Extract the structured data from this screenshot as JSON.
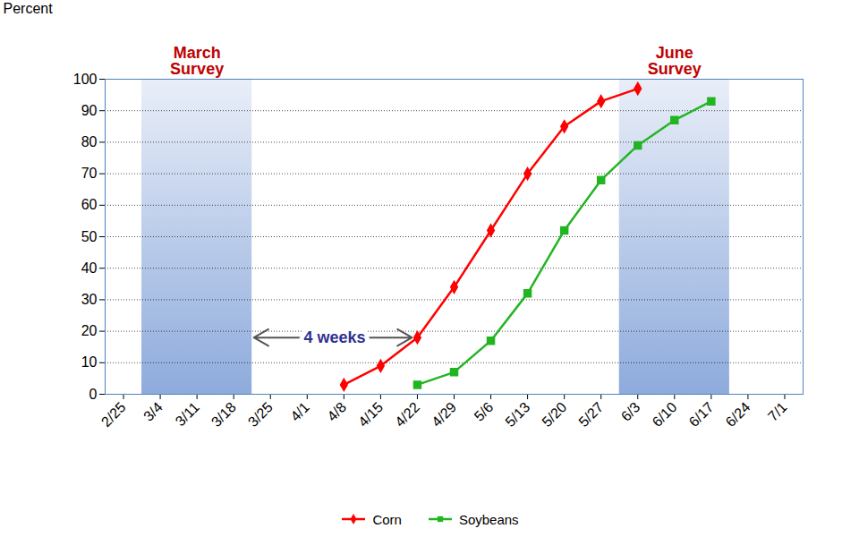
{
  "chart_data": {
    "type": "line",
    "x": [
      "2/25",
      "3/4",
      "3/11",
      "3/18",
      "3/25",
      "4/1",
      "4/8",
      "4/15",
      "4/22",
      "4/29",
      "5/6",
      "5/13",
      "5/20",
      "5/27",
      "6/3",
      "6/10",
      "6/17",
      "6/24",
      "7/1"
    ],
    "series": [
      {
        "name": "Corn",
        "color": "#ff0000",
        "marker": "diamond",
        "values": [
          null,
          null,
          null,
          null,
          null,
          null,
          3,
          9,
          18,
          34,
          52,
          70,
          85,
          93,
          97,
          null,
          null,
          null,
          null
        ]
      },
      {
        "name": "Soybeans",
        "color": "#22b522",
        "marker": "square",
        "values": [
          null,
          null,
          null,
          null,
          null,
          null,
          null,
          null,
          3,
          7,
          17,
          32,
          52,
          68,
          79,
          87,
          93,
          null,
          null
        ]
      }
    ],
    "y_label": "Percent",
    "ylim": [
      0,
      100
    ],
    "yticks": [
      0,
      10,
      20,
      30,
      40,
      50,
      60,
      70,
      80,
      90,
      100
    ],
    "grid": true,
    "legend": "bottom",
    "surveys": [
      {
        "label": "March Survey",
        "start": "3/4",
        "end": "3/18"
      },
      {
        "label": "June Survey",
        "start": "6/3",
        "end": "6/17"
      }
    ],
    "annotation": {
      "text": "4 weeks",
      "from": "3/18",
      "to": "4/22"
    }
  }
}
